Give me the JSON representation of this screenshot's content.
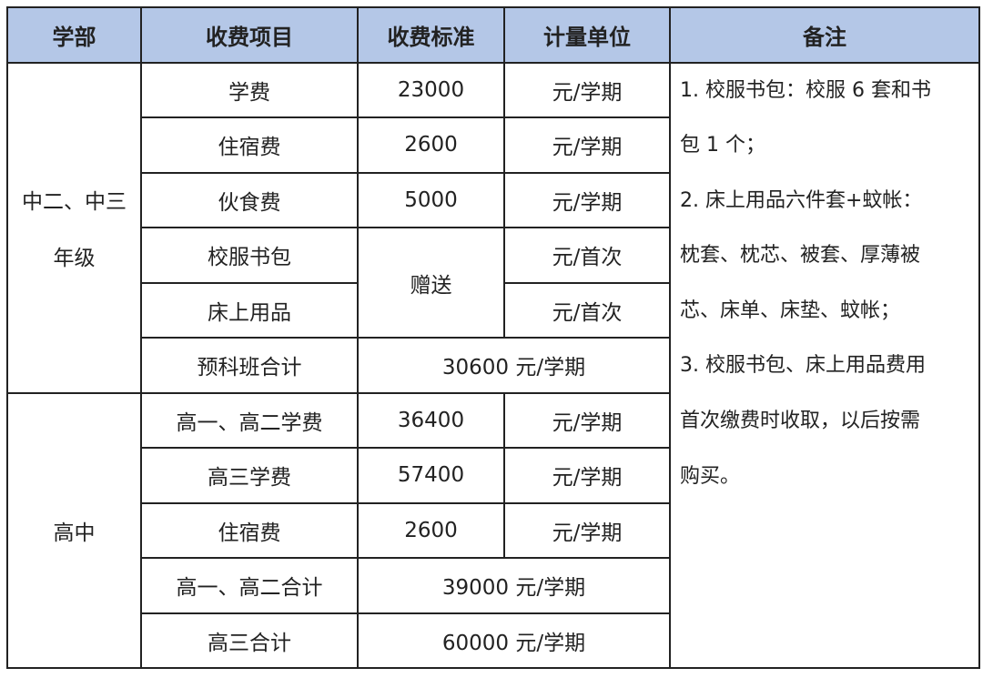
{
  "headers": [
    "学部",
    "收费项目",
    "收费标准",
    "计量单位",
    "备注"
  ],
  "section1": {
    "dept_line1": "中二、中三",
    "dept_line2": "年级",
    "rows": [
      {
        "item": "学费",
        "standard": "23000",
        "unit": "元/学期"
      },
      {
        "item": "住宿费",
        "standard": "2600",
        "unit": "元/学期"
      },
      {
        "item": "伙食费",
        "standard": "5000",
        "unit": "元/学期"
      },
      {
        "item": "校服书包",
        "unit": "元/首次"
      },
      {
        "item": "床上用品",
        "unit": "元/首次"
      }
    ],
    "gift": "赠送",
    "total_item": "预科班合计",
    "total_value": "30600 元/学期"
  },
  "section2": {
    "dept": "高中",
    "rows": [
      {
        "item": "高一、高二学费",
        "standard": "36400",
        "unit": "元/学期"
      },
      {
        "item": "高三学费",
        "standard": "57400",
        "unit": "元/学期"
      },
      {
        "item": "住宿费",
        "standard": "2600",
        "unit": "元/学期"
      }
    ],
    "totals": [
      {
        "item": "高一、高二合计",
        "value": "39000 元/学期"
      },
      {
        "item": "高三合计",
        "value": "60000 元/学期"
      }
    ]
  },
  "notes": [
    "1. 校服书包：校服 6 套和书",
    "包 1 个；",
    "2. 床上用品六件套+蚊帐：",
    "枕套、枕芯、被套、厚薄被",
    "芯、床单、床垫、蚊帐；",
    "3. 校服书包、床上用品费用",
    "首次缴费时收取，以后按需",
    "购买。"
  ],
  "colors": {
    "header_bg": "#b4c7e7",
    "border": "#222222"
  }
}
